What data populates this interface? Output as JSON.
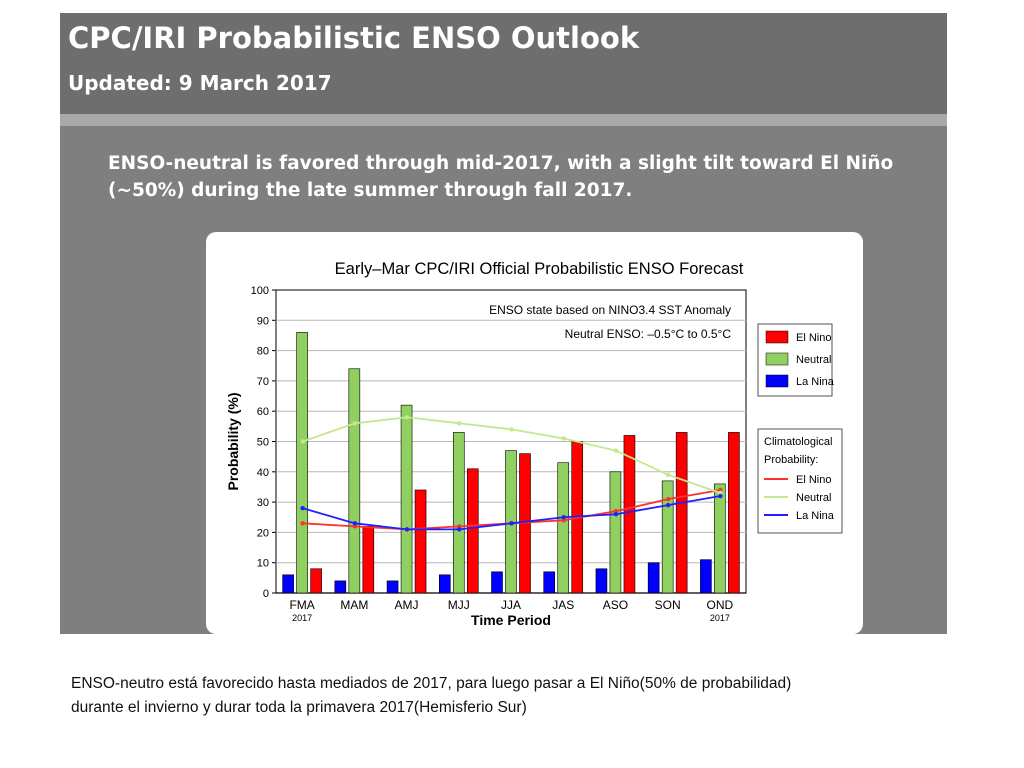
{
  "slide": {
    "title": "CPC/IRI Probabilistic ENSO Outlook",
    "updated": "Updated: 9 March 2017",
    "headline": "ENSO-neutral is favored through mid-2017, with a slight tilt toward El Niño (~50%) during the late summer through fall 2017.",
    "caption_lines": [
      "ENSO-neutro está favorecido hasta mediados de 2017, para luego pasar a El Niño(50% de probabilidad)",
      "durante el invierno y durar toda la primavera 2017(Hemisferio Sur)"
    ]
  },
  "colors": {
    "panel": "#7f7f7f",
    "el_nino_bar": "#ff0000",
    "neutral_bar": "#90d060",
    "la_nina_bar": "#0000ff",
    "el_nino_line": "#ff3030",
    "neutral_line": "#c4e890",
    "la_nina_line": "#2020ff"
  },
  "chart_data": {
    "type": "bar",
    "title": "Early–Mar CPC/IRI Official Probabilistic ENSO Forecast",
    "annotation_lines": [
      "ENSO state based on NINO3.4 SST Anomaly",
      "Neutral ENSO: –0.5°C to 0.5°C"
    ],
    "xlabel": "Time Period",
    "ylabel": "Probability (%)",
    "ylim": [
      0,
      100
    ],
    "yticks": [
      0,
      10,
      20,
      30,
      40,
      50,
      60,
      70,
      80,
      90,
      100
    ],
    "grid": true,
    "categories": [
      "FMA",
      "MAM",
      "AMJ",
      "MJJ",
      "JJA",
      "JAS",
      "ASO",
      "SON",
      "OND"
    ],
    "category_sublabels": [
      "2017",
      "",
      "",
      "",
      "",
      "",
      "",
      "",
      "2017"
    ],
    "series": [
      {
        "name": "La Nina",
        "values": [
          6,
          4,
          4,
          6,
          7,
          7,
          8,
          10,
          11
        ]
      },
      {
        "name": "Neutral",
        "values": [
          86,
          74,
          62,
          53,
          47,
          43,
          40,
          37,
          36
        ]
      },
      {
        "name": "El Nino",
        "values": [
          8,
          22,
          34,
          41,
          46,
          50,
          52,
          53,
          53
        ]
      }
    ],
    "legend_title": "",
    "climatology_title": "Climatological Probability:",
    "climatology": [
      {
        "name": "El Nino",
        "values": [
          23,
          22,
          21,
          22,
          23,
          24,
          27,
          31,
          34
        ]
      },
      {
        "name": "Neutral",
        "values": [
          50,
          56,
          58,
          56,
          54,
          51,
          47,
          39,
          33
        ]
      },
      {
        "name": "La Nina",
        "values": [
          28,
          23,
          21,
          21,
          23,
          25,
          26,
          29,
          32
        ]
      }
    ],
    "legend_placement": "right"
  }
}
